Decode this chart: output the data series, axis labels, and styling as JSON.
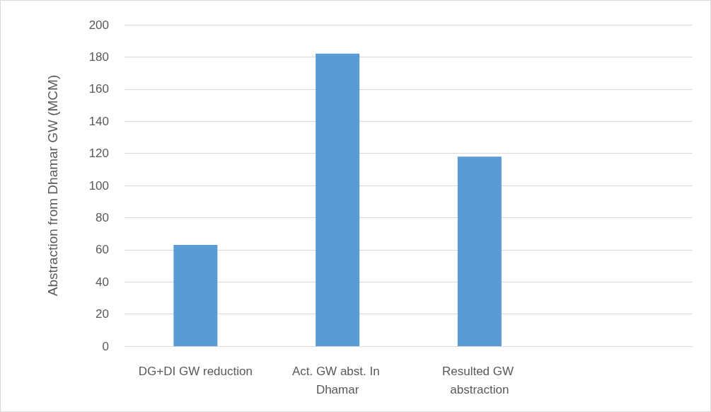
{
  "chart_data": {
    "type": "bar",
    "ylabel": "Abstraction from Dhamar GW (MCM)",
    "categories": [
      "DG+DI GW reduction",
      "Act. GW abst. In Dhamar",
      "Resulted GW abstraction",
      null
    ],
    "values": [
      63,
      182,
      118,
      null
    ],
    "color": "#5b9bd5",
    "ylim": [
      0,
      200
    ],
    "yticks": [
      0,
      20,
      40,
      60,
      80,
      100,
      120,
      140,
      160,
      180,
      200
    ],
    "grid": "y"
  }
}
